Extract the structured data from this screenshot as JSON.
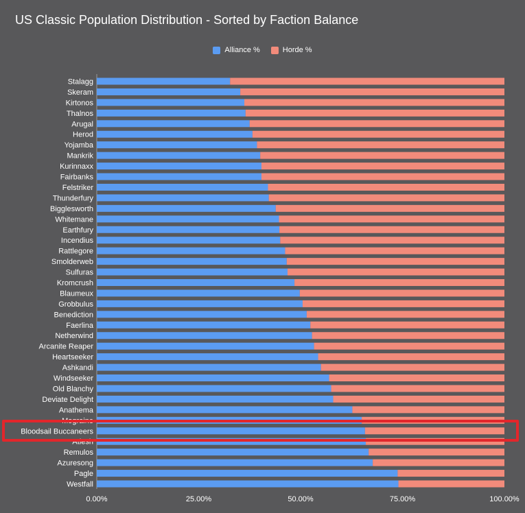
{
  "colors": {
    "alliance": "#5b9cf2",
    "horde": "#f28b7b",
    "highlight": "#e3262b"
  },
  "chart_data": {
    "type": "bar",
    "orientation": "horizontal",
    "stacked": true,
    "title": "US Classic Population Distribution - Sorted by Faction Balance",
    "legend_position": "top",
    "xlim": [
      0,
      100
    ],
    "x_ticks": [
      "0.00%",
      "25.00%",
      "50.00%",
      "75.00%",
      "100.00%"
    ],
    "highlighted_category": "Bloodsail Buccaneers",
    "categories": [
      "Stalagg",
      "Skeram",
      "Kirtonos",
      "Thalnos",
      "Arugal",
      "Herod",
      "Yojamba",
      "Mankrik",
      "Kurinnaxx",
      "Fairbanks",
      "Felstriker",
      "Thunderfury",
      "Bigglesworth",
      "Whitemane",
      "Earthfury",
      "Incendius",
      "Rattlegore",
      "Smolderweb",
      "Sulfuras",
      "Kromcrush",
      "Blaumeux",
      "Grobbulus",
      "Benediction",
      "Faerlina",
      "Netherwind",
      "Arcanite Reaper",
      "Heartseeker",
      "Ashkandi",
      "Windseeker",
      "Old Blanchy",
      "Deviate Delight",
      "Anathema",
      "Mograine",
      "Bloodsail Buccaneers",
      "Atiesh",
      "Remulos",
      "Azuresong",
      "Pagle",
      "Westfall"
    ],
    "series": [
      {
        "name": "Alliance %",
        "values": [
          32.7,
          35.2,
          36.2,
          36.5,
          37.5,
          38.2,
          39.3,
          40.1,
          40.4,
          40.4,
          42.0,
          42.2,
          43.9,
          44.7,
          44.8,
          45.0,
          46.2,
          46.6,
          46.8,
          48.5,
          49.8,
          50.5,
          51.5,
          52.4,
          52.8,
          53.3,
          54.3,
          55.0,
          57.0,
          57.5,
          58.0,
          62.7,
          65.0,
          65.8,
          66.0,
          66.7,
          67.7,
          73.8,
          74.0
        ]
      },
      {
        "name": "Horde %",
        "values": [
          67.3,
          64.8,
          63.8,
          63.5,
          62.5,
          61.8,
          60.7,
          59.9,
          59.6,
          59.6,
          58.0,
          57.8,
          56.1,
          55.3,
          55.2,
          55.0,
          53.8,
          53.4,
          53.2,
          51.5,
          50.2,
          49.5,
          48.5,
          47.6,
          47.2,
          46.7,
          45.7,
          45.0,
          43.0,
          42.5,
          42.0,
          37.3,
          35.0,
          34.2,
          34.0,
          33.3,
          32.3,
          26.2,
          26.0
        ]
      }
    ]
  }
}
